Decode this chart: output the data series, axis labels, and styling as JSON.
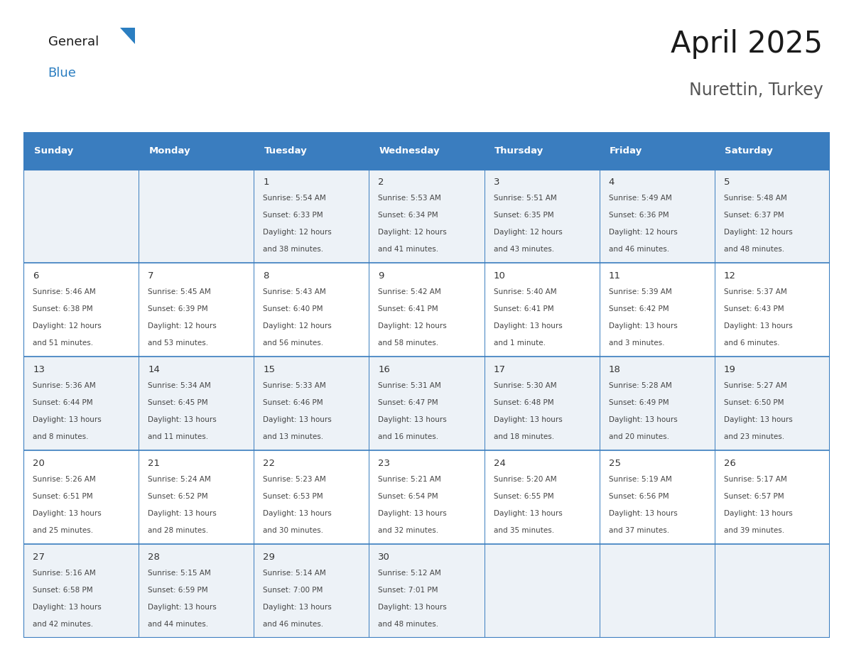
{
  "title": "April 2025",
  "subtitle": "Nurettin, Turkey",
  "header_bg": "#3a7dbf",
  "header_text": "#ffffff",
  "cell_bg_odd": "#edf2f7",
  "cell_bg_even": "#ffffff",
  "day_headers": [
    "Sunday",
    "Monday",
    "Tuesday",
    "Wednesday",
    "Thursday",
    "Friday",
    "Saturday"
  ],
  "grid_color": "#3a7dbf",
  "day_num_color": "#333333",
  "text_color": "#444444",
  "background": "#ffffff",
  "logo_black": "#1a1a1a",
  "logo_blue": "#2b7ec1",
  "logo_tri": "#2b7ec1",
  "days": [
    {
      "date": 1,
      "col": 2,
      "row": 0,
      "sunrise": "5:54 AM",
      "sunset": "6:33 PM",
      "daylight_line1": "Daylight: 12 hours",
      "daylight_line2": "and 38 minutes."
    },
    {
      "date": 2,
      "col": 3,
      "row": 0,
      "sunrise": "5:53 AM",
      "sunset": "6:34 PM",
      "daylight_line1": "Daylight: 12 hours",
      "daylight_line2": "and 41 minutes."
    },
    {
      "date": 3,
      "col": 4,
      "row": 0,
      "sunrise": "5:51 AM",
      "sunset": "6:35 PM",
      "daylight_line1": "Daylight: 12 hours",
      "daylight_line2": "and 43 minutes."
    },
    {
      "date": 4,
      "col": 5,
      "row": 0,
      "sunrise": "5:49 AM",
      "sunset": "6:36 PM",
      "daylight_line1": "Daylight: 12 hours",
      "daylight_line2": "and 46 minutes."
    },
    {
      "date": 5,
      "col": 6,
      "row": 0,
      "sunrise": "5:48 AM",
      "sunset": "6:37 PM",
      "daylight_line1": "Daylight: 12 hours",
      "daylight_line2": "and 48 minutes."
    },
    {
      "date": 6,
      "col": 0,
      "row": 1,
      "sunrise": "5:46 AM",
      "sunset": "6:38 PM",
      "daylight_line1": "Daylight: 12 hours",
      "daylight_line2": "and 51 minutes."
    },
    {
      "date": 7,
      "col": 1,
      "row": 1,
      "sunrise": "5:45 AM",
      "sunset": "6:39 PM",
      "daylight_line1": "Daylight: 12 hours",
      "daylight_line2": "and 53 minutes."
    },
    {
      "date": 8,
      "col": 2,
      "row": 1,
      "sunrise": "5:43 AM",
      "sunset": "6:40 PM",
      "daylight_line1": "Daylight: 12 hours",
      "daylight_line2": "and 56 minutes."
    },
    {
      "date": 9,
      "col": 3,
      "row": 1,
      "sunrise": "5:42 AM",
      "sunset": "6:41 PM",
      "daylight_line1": "Daylight: 12 hours",
      "daylight_line2": "and 58 minutes."
    },
    {
      "date": 10,
      "col": 4,
      "row": 1,
      "sunrise": "5:40 AM",
      "sunset": "6:41 PM",
      "daylight_line1": "Daylight: 13 hours",
      "daylight_line2": "and 1 minute."
    },
    {
      "date": 11,
      "col": 5,
      "row": 1,
      "sunrise": "5:39 AM",
      "sunset": "6:42 PM",
      "daylight_line1": "Daylight: 13 hours",
      "daylight_line2": "and 3 minutes."
    },
    {
      "date": 12,
      "col": 6,
      "row": 1,
      "sunrise": "5:37 AM",
      "sunset": "6:43 PM",
      "daylight_line1": "Daylight: 13 hours",
      "daylight_line2": "and 6 minutes."
    },
    {
      "date": 13,
      "col": 0,
      "row": 2,
      "sunrise": "5:36 AM",
      "sunset": "6:44 PM",
      "daylight_line1": "Daylight: 13 hours",
      "daylight_line2": "and 8 minutes."
    },
    {
      "date": 14,
      "col": 1,
      "row": 2,
      "sunrise": "5:34 AM",
      "sunset": "6:45 PM",
      "daylight_line1": "Daylight: 13 hours",
      "daylight_line2": "and 11 minutes."
    },
    {
      "date": 15,
      "col": 2,
      "row": 2,
      "sunrise": "5:33 AM",
      "sunset": "6:46 PM",
      "daylight_line1": "Daylight: 13 hours",
      "daylight_line2": "and 13 minutes."
    },
    {
      "date": 16,
      "col": 3,
      "row": 2,
      "sunrise": "5:31 AM",
      "sunset": "6:47 PM",
      "daylight_line1": "Daylight: 13 hours",
      "daylight_line2": "and 16 minutes."
    },
    {
      "date": 17,
      "col": 4,
      "row": 2,
      "sunrise": "5:30 AM",
      "sunset": "6:48 PM",
      "daylight_line1": "Daylight: 13 hours",
      "daylight_line2": "and 18 minutes."
    },
    {
      "date": 18,
      "col": 5,
      "row": 2,
      "sunrise": "5:28 AM",
      "sunset": "6:49 PM",
      "daylight_line1": "Daylight: 13 hours",
      "daylight_line2": "and 20 minutes."
    },
    {
      "date": 19,
      "col": 6,
      "row": 2,
      "sunrise": "5:27 AM",
      "sunset": "6:50 PM",
      "daylight_line1": "Daylight: 13 hours",
      "daylight_line2": "and 23 minutes."
    },
    {
      "date": 20,
      "col": 0,
      "row": 3,
      "sunrise": "5:26 AM",
      "sunset": "6:51 PM",
      "daylight_line1": "Daylight: 13 hours",
      "daylight_line2": "and 25 minutes."
    },
    {
      "date": 21,
      "col": 1,
      "row": 3,
      "sunrise": "5:24 AM",
      "sunset": "6:52 PM",
      "daylight_line1": "Daylight: 13 hours",
      "daylight_line2": "and 28 minutes."
    },
    {
      "date": 22,
      "col": 2,
      "row": 3,
      "sunrise": "5:23 AM",
      "sunset": "6:53 PM",
      "daylight_line1": "Daylight: 13 hours",
      "daylight_line2": "and 30 minutes."
    },
    {
      "date": 23,
      "col": 3,
      "row": 3,
      "sunrise": "5:21 AM",
      "sunset": "6:54 PM",
      "daylight_line1": "Daylight: 13 hours",
      "daylight_line2": "and 32 minutes."
    },
    {
      "date": 24,
      "col": 4,
      "row": 3,
      "sunrise": "5:20 AM",
      "sunset": "6:55 PM",
      "daylight_line1": "Daylight: 13 hours",
      "daylight_line2": "and 35 minutes."
    },
    {
      "date": 25,
      "col": 5,
      "row": 3,
      "sunrise": "5:19 AM",
      "sunset": "6:56 PM",
      "daylight_line1": "Daylight: 13 hours",
      "daylight_line2": "and 37 minutes."
    },
    {
      "date": 26,
      "col": 6,
      "row": 3,
      "sunrise": "5:17 AM",
      "sunset": "6:57 PM",
      "daylight_line1": "Daylight: 13 hours",
      "daylight_line2": "and 39 minutes."
    },
    {
      "date": 27,
      "col": 0,
      "row": 4,
      "sunrise": "5:16 AM",
      "sunset": "6:58 PM",
      "daylight_line1": "Daylight: 13 hours",
      "daylight_line2": "and 42 minutes."
    },
    {
      "date": 28,
      "col": 1,
      "row": 4,
      "sunrise": "5:15 AM",
      "sunset": "6:59 PM",
      "daylight_line1": "Daylight: 13 hours",
      "daylight_line2": "and 44 minutes."
    },
    {
      "date": 29,
      "col": 2,
      "row": 4,
      "sunrise": "5:14 AM",
      "sunset": "7:00 PM",
      "daylight_line1": "Daylight: 13 hours",
      "daylight_line2": "and 46 minutes."
    },
    {
      "date": 30,
      "col": 3,
      "row": 4,
      "sunrise": "5:12 AM",
      "sunset": "7:01 PM",
      "daylight_line1": "Daylight: 13 hours",
      "daylight_line2": "and 48 minutes."
    }
  ]
}
